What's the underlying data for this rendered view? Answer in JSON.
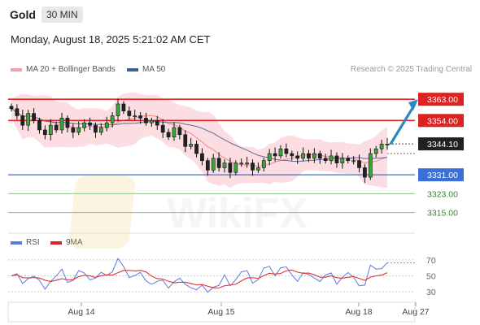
{
  "header": {
    "instrument": "Gold",
    "timeframe": "30 MIN"
  },
  "datetime": "Monday, August 18, 2025 5:21:02 AM CET",
  "legend": {
    "ma_bollinger": "MA 20 + Bollinger Bands",
    "ma50": "MA 50",
    "rsi": "RSI",
    "ma9": "9MA"
  },
  "credit": "Research © 2025 Trading Central",
  "watermark": "WikiFX",
  "colors": {
    "resistance": "#dd2222",
    "support": "#3a6fd8",
    "target": "#2e86c1",
    "price_tag": "#222222",
    "bollinger_fill": "#fbd3d8",
    "ma20": "#ee8888",
    "ma50": "#5a6d9a",
    "rsi": "#5c7ae0",
    "ma9": "#dd3333"
  },
  "chart_data": {
    "type": "candlestick",
    "x_ticks": [
      "Aug 14",
      "Aug 15",
      "Aug 18",
      "Aug 27"
    ],
    "levels": [
      {
        "value": 3363.0,
        "label": "3363.00",
        "kind": "resistance"
      },
      {
        "value": 3354.0,
        "label": "3354.00",
        "kind": "resistance"
      },
      {
        "value": 3344.1,
        "label": "3344.10",
        "kind": "last"
      },
      {
        "value": 3331.0,
        "label": "3331.00",
        "kind": "pivot"
      },
      {
        "value": 3323.0,
        "label": "3323.00",
        "kind": "support"
      },
      {
        "value": 3315.0,
        "label": "3315.00",
        "kind": "support"
      }
    ],
    "close_path": [
      3359,
      3356,
      3352,
      3357,
      3354,
      3350,
      3348,
      3352,
      3350,
      3355,
      3351,
      3349,
      3351,
      3353,
      3352,
      3349,
      3351,
      3353,
      3356,
      3361,
      3358,
      3356,
      3356,
      3355,
      3353,
      3354,
      3352,
      3349,
      3347,
      3351,
      3348,
      3343,
      3344,
      3340,
      3337,
      3333,
      3338,
      3334,
      3336,
      3332,
      3336,
      3336,
      3336,
      3333,
      3334,
      3337,
      3340,
      3339,
      3342,
      3340,
      3339,
      3338,
      3340,
      3338,
      3340,
      3338,
      3337,
      3339,
      3336,
      3338,
      3337,
      3337,
      3334,
      3330,
      3340,
      3342,
      3344,
      3344
    ],
    "price_ylim": [
      3308,
      3372
    ],
    "rsi": {
      "ticks": [
        70,
        50,
        30
      ],
      "ylim": [
        22,
        78
      ]
    }
  }
}
